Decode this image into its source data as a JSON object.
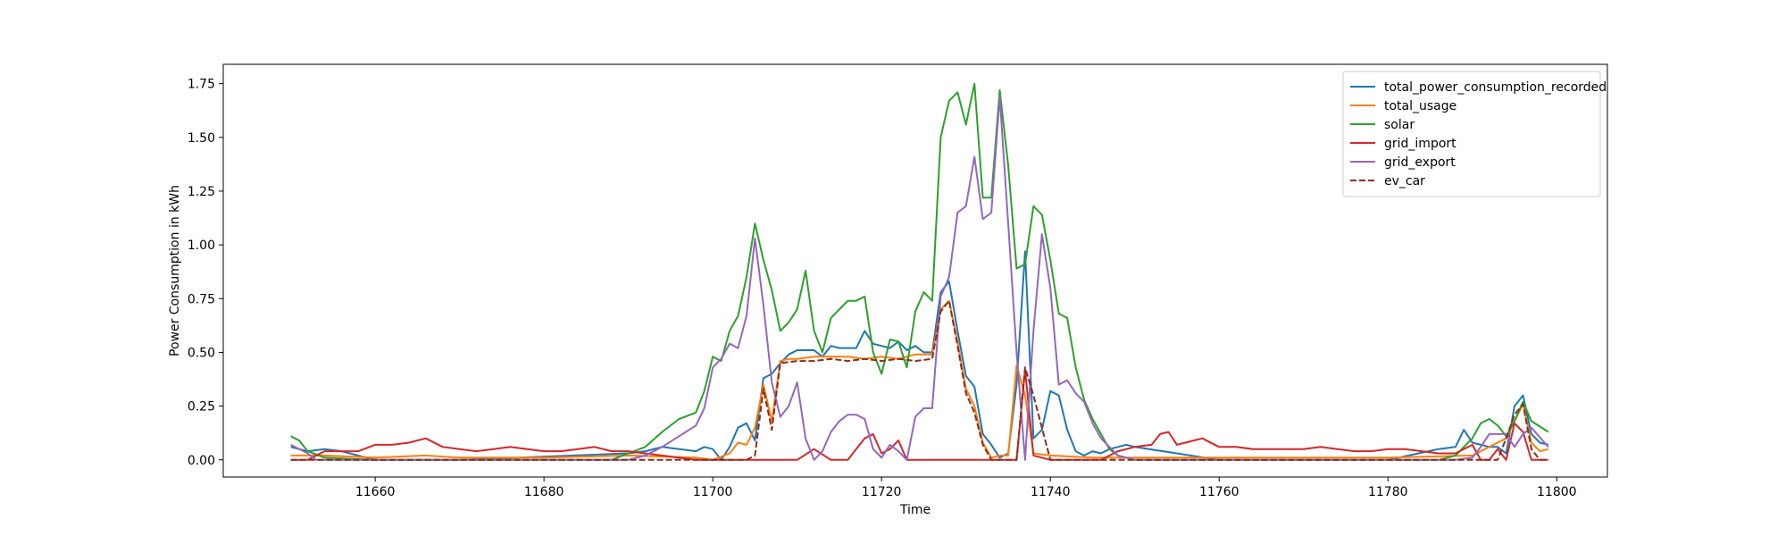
{
  "chart_data": {
    "type": "line",
    "title": "",
    "xlabel": "Time",
    "ylabel": "Power Consumption in kWh",
    "xlim": [
      11642,
      11806
    ],
    "ylim": [
      -0.08,
      1.84
    ],
    "xticks": [
      11660,
      11680,
      11700,
      11720,
      11740,
      11760,
      11780,
      11800
    ],
    "yticks": [
      "0.00",
      "0.25",
      "0.50",
      "0.75",
      "1.00",
      "1.25",
      "1.50",
      "1.75"
    ],
    "ytick_values": [
      0,
      0.25,
      0.5,
      0.75,
      1.0,
      1.25,
      1.5,
      1.75
    ],
    "grid": false,
    "legend_position": "top-right",
    "series": [
      {
        "name": "total_power_consumption_recorded",
        "color": "#1f77b4",
        "dash": "solid",
        "x": [
          11650,
          11652,
          11654,
          11656,
          11660,
          11670,
          11690,
          11692,
          11694,
          11696,
          11698,
          11699,
          11700,
          11701,
          11702,
          11703,
          11704,
          11705,
          11706,
          11707,
          11708,
          11709,
          11710,
          11711,
          11712,
          11713,
          11714,
          11715,
          11716,
          11717,
          11718,
          11719,
          11720,
          11721,
          11722,
          11723,
          11724,
          11725,
          11726,
          11727,
          11728,
          11729,
          11730,
          11731,
          11732,
          11733,
          11734,
          11735,
          11736,
          11737,
          11738,
          11739,
          11740,
          11741,
          11742,
          11743,
          11744,
          11745,
          11746,
          11747,
          11748,
          11749,
          11750,
          11760,
          11770,
          11780,
          11786,
          11788,
          11789,
          11790,
          11791,
          11792,
          11793,
          11794,
          11795,
          11796,
          11797,
          11798,
          11799
        ],
        "y": [
          0.06,
          0.04,
          0.05,
          0.04,
          0.0,
          0.0,
          0.03,
          0.04,
          0.06,
          0.05,
          0.04,
          0.06,
          0.05,
          0.0,
          0.06,
          0.15,
          0.17,
          0.09,
          0.38,
          0.4,
          0.45,
          0.49,
          0.51,
          0.51,
          0.51,
          0.48,
          0.53,
          0.52,
          0.52,
          0.52,
          0.6,
          0.54,
          0.53,
          0.52,
          0.55,
          0.51,
          0.53,
          0.5,
          0.5,
          0.78,
          0.83,
          0.6,
          0.39,
          0.34,
          0.12,
          0.07,
          0.01,
          0.03,
          0.35,
          0.97,
          0.1,
          0.14,
          0.32,
          0.3,
          0.14,
          0.04,
          0.02,
          0.04,
          0.03,
          0.05,
          0.06,
          0.07,
          0.06,
          0.0,
          0.0,
          0.0,
          0.05,
          0.06,
          0.14,
          0.08,
          0.07,
          0.06,
          0.06,
          0.03,
          0.25,
          0.3,
          0.12,
          0.08,
          0.07
        ]
      },
      {
        "name": "total_usage",
        "color": "#ff7f0e",
        "dash": "solid",
        "x": [
          11650,
          11654,
          11660,
          11666,
          11670,
          11680,
          11690,
          11698,
          11700,
          11702,
          11703,
          11704,
          11705,
          11706,
          11707,
          11708,
          11709,
          11710,
          11712,
          11714,
          11716,
          11718,
          11720,
          11722,
          11724,
          11726,
          11727,
          11728,
          11729,
          11730,
          11731,
          11732,
          11733,
          11734,
          11735,
          11736,
          11737,
          11738,
          11740,
          11745,
          11750,
          11760,
          11770,
          11780,
          11790,
          11794,
          11795,
          11796,
          11797,
          11798,
          11799
        ],
        "y": [
          0.02,
          0.02,
          0.01,
          0.02,
          0.01,
          0.01,
          0.02,
          0.01,
          0.0,
          0.03,
          0.08,
          0.07,
          0.15,
          0.35,
          0.18,
          0.46,
          0.47,
          0.47,
          0.48,
          0.48,
          0.48,
          0.47,
          0.48,
          0.47,
          0.49,
          0.49,
          0.7,
          0.74,
          0.55,
          0.33,
          0.25,
          0.08,
          0.01,
          0.02,
          0.02,
          0.44,
          0.3,
          0.03,
          0.02,
          0.01,
          0.01,
          0.01,
          0.01,
          0.01,
          0.02,
          0.1,
          0.18,
          0.26,
          0.08,
          0.04,
          0.05
        ]
      },
      {
        "name": "solar",
        "color": "#2ca02c",
        "dash": "solid",
        "x": [
          11650,
          11651,
          11652,
          11654,
          11660,
          11670,
          11680,
          11688,
          11690,
          11692,
          11694,
          11696,
          11698,
          11699,
          11700,
          11701,
          11702,
          11703,
          11704,
          11705,
          11706,
          11707,
          11708,
          11709,
          11710,
          11711,
          11712,
          11713,
          11714,
          11715,
          11716,
          11717,
          11718,
          11719,
          11720,
          11721,
          11722,
          11723,
          11724,
          11725,
          11726,
          11727,
          11728,
          11729,
          11730,
          11731,
          11732,
          11733,
          11734,
          11735,
          11736,
          11737,
          11738,
          11739,
          11740,
          11741,
          11742,
          11743,
          11744,
          11745,
          11746,
          11747,
          11748,
          11750,
          11760,
          11770,
          11780,
          11786,
          11788,
          11790,
          11791,
          11792,
          11793,
          11794,
          11795,
          11796,
          11797,
          11799
        ],
        "y": [
          0.11,
          0.09,
          0.04,
          0.01,
          0.0,
          0.0,
          0.0,
          0.0,
          0.03,
          0.06,
          0.13,
          0.19,
          0.22,
          0.32,
          0.48,
          0.46,
          0.6,
          0.67,
          0.85,
          1.1,
          0.93,
          0.79,
          0.6,
          0.64,
          0.7,
          0.88,
          0.6,
          0.5,
          0.66,
          0.7,
          0.74,
          0.74,
          0.76,
          0.5,
          0.4,
          0.56,
          0.55,
          0.43,
          0.69,
          0.78,
          0.74,
          1.5,
          1.67,
          1.71,
          1.56,
          1.75,
          1.22,
          1.22,
          1.72,
          1.37,
          0.89,
          0.91,
          1.18,
          1.14,
          0.93,
          0.68,
          0.66,
          0.43,
          0.28,
          0.19,
          0.12,
          0.05,
          0.02,
          0.0,
          0.0,
          0.0,
          0.0,
          0.0,
          0.02,
          0.1,
          0.17,
          0.19,
          0.16,
          0.11,
          0.18,
          0.27,
          0.18,
          0.13
        ]
      },
      {
        "name": "grid_import",
        "color": "#d62728",
        "dash": "solid",
        "x": [
          11650,
          11652,
          11654,
          11656,
          11658,
          11660,
          11662,
          11664,
          11666,
          11668,
          11670,
          11672,
          11674,
          11676,
          11678,
          11680,
          11682,
          11684,
          11686,
          11688,
          11690,
          11692,
          11694,
          11698,
          11700,
          11702,
          11703,
          11704,
          11705,
          11706,
          11707,
          11708,
          11710,
          11712,
          11714,
          11716,
          11717,
          11718,
          11719,
          11720,
          11721,
          11722,
          11723,
          11724,
          11726,
          11728,
          11730,
          11732,
          11734,
          11735,
          11736,
          11737,
          11738,
          11740,
          11742,
          11744,
          11746,
          11748,
          11750,
          11752,
          11753,
          11754,
          11755,
          11756,
          11757,
          11758,
          11760,
          11762,
          11764,
          11766,
          11768,
          11770,
          11772,
          11774,
          11776,
          11778,
          11780,
          11782,
          11784,
          11786,
          11788,
          11790,
          11791,
          11792,
          11793,
          11794,
          11795,
          11796,
          11797,
          11798,
          11799
        ],
        "y": [
          0.0,
          0.0,
          0.04,
          0.04,
          0.04,
          0.07,
          0.07,
          0.08,
          0.1,
          0.06,
          0.05,
          0.04,
          0.05,
          0.06,
          0.05,
          0.04,
          0.04,
          0.05,
          0.06,
          0.04,
          0.04,
          0.03,
          0.02,
          0.0,
          0.0,
          0.0,
          0.0,
          0.0,
          0.0,
          0.0,
          0.0,
          0.0,
          0.0,
          0.05,
          0.0,
          0.0,
          0.05,
          0.1,
          0.12,
          0.03,
          0.05,
          0.09,
          0.0,
          0.0,
          0.0,
          0.0,
          0.0,
          0.0,
          0.0,
          0.0,
          0.0,
          0.42,
          0.02,
          0.0,
          0.0,
          0.0,
          0.0,
          0.04,
          0.06,
          0.07,
          0.12,
          0.13,
          0.07,
          0.08,
          0.09,
          0.1,
          0.06,
          0.06,
          0.05,
          0.05,
          0.05,
          0.05,
          0.06,
          0.05,
          0.04,
          0.04,
          0.05,
          0.05,
          0.04,
          0.03,
          0.03,
          0.07,
          0.0,
          0.0,
          0.05,
          0.0,
          0.17,
          0.13,
          0.0,
          0.0,
          0.0
        ]
      },
      {
        "name": "grid_export",
        "color": "#9467bd",
        "dash": "solid",
        "x": [
          11650,
          11652,
          11653,
          11654,
          11660,
          11670,
          11680,
          11690,
          11692,
          11694,
          11696,
          11698,
          11699,
          11700,
          11701,
          11702,
          11703,
          11704,
          11705,
          11706,
          11707,
          11708,
          11709,
          11710,
          11711,
          11712,
          11713,
          11714,
          11715,
          11716,
          11717,
          11718,
          11719,
          11720,
          11721,
          11722,
          11723,
          11724,
          11725,
          11726,
          11727,
          11728,
          11729,
          11730,
          11731,
          11732,
          11733,
          11734,
          11735,
          11736,
          11737,
          11738,
          11739,
          11740,
          11741,
          11742,
          11743,
          11744,
          11745,
          11746,
          11748,
          11750,
          11760,
          11770,
          11780,
          11786,
          11788,
          11790,
          11791,
          11792,
          11793,
          11794,
          11795,
          11796,
          11797,
          11799
        ],
        "y": [
          0.07,
          0.03,
          0.0,
          0.0,
          0.0,
          0.0,
          0.0,
          0.0,
          0.02,
          0.06,
          0.11,
          0.16,
          0.24,
          0.43,
          0.47,
          0.54,
          0.52,
          0.67,
          1.03,
          0.72,
          0.36,
          0.2,
          0.25,
          0.36,
          0.1,
          0.0,
          0.04,
          0.13,
          0.18,
          0.21,
          0.21,
          0.19,
          0.05,
          0.01,
          0.07,
          0.04,
          0.0,
          0.2,
          0.24,
          0.24,
          0.76,
          0.85,
          1.15,
          1.18,
          1.41,
          1.12,
          1.15,
          1.69,
          1.1,
          0.5,
          0.0,
          0.6,
          1.05,
          0.8,
          0.35,
          0.37,
          0.31,
          0.27,
          0.17,
          0.1,
          0.02,
          0.0,
          0.0,
          0.0,
          0.0,
          0.0,
          0.0,
          0.01,
          0.06,
          0.12,
          0.12,
          0.12,
          0.06,
          0.12,
          0.15,
          0.06
        ]
      },
      {
        "name": "ev_car",
        "color": "#8c2d19",
        "dash": "dashed",
        "x": [
          11650,
          11704,
          11705,
          11706,
          11707,
          11708,
          11710,
          11712,
          11714,
          11716,
          11718,
          11720,
          11722,
          11724,
          11726,
          11727,
          11728,
          11729,
          11730,
          11731,
          11732,
          11733,
          11734,
          11735,
          11736,
          11737,
          11738,
          11740,
          11790,
          11793,
          11794,
          11795,
          11796,
          11797,
          11798,
          11799
        ],
        "y": [
          0.0,
          0.0,
          0.02,
          0.33,
          0.14,
          0.45,
          0.46,
          0.46,
          0.47,
          0.46,
          0.47,
          0.46,
          0.47,
          0.46,
          0.47,
          0.69,
          0.74,
          0.53,
          0.31,
          0.22,
          0.07,
          0.0,
          0.0,
          0.0,
          0.0,
          0.43,
          0.3,
          0.0,
          0.0,
          0.0,
          0.1,
          0.21,
          0.26,
          0.05,
          0.0,
          0.0
        ]
      }
    ]
  }
}
